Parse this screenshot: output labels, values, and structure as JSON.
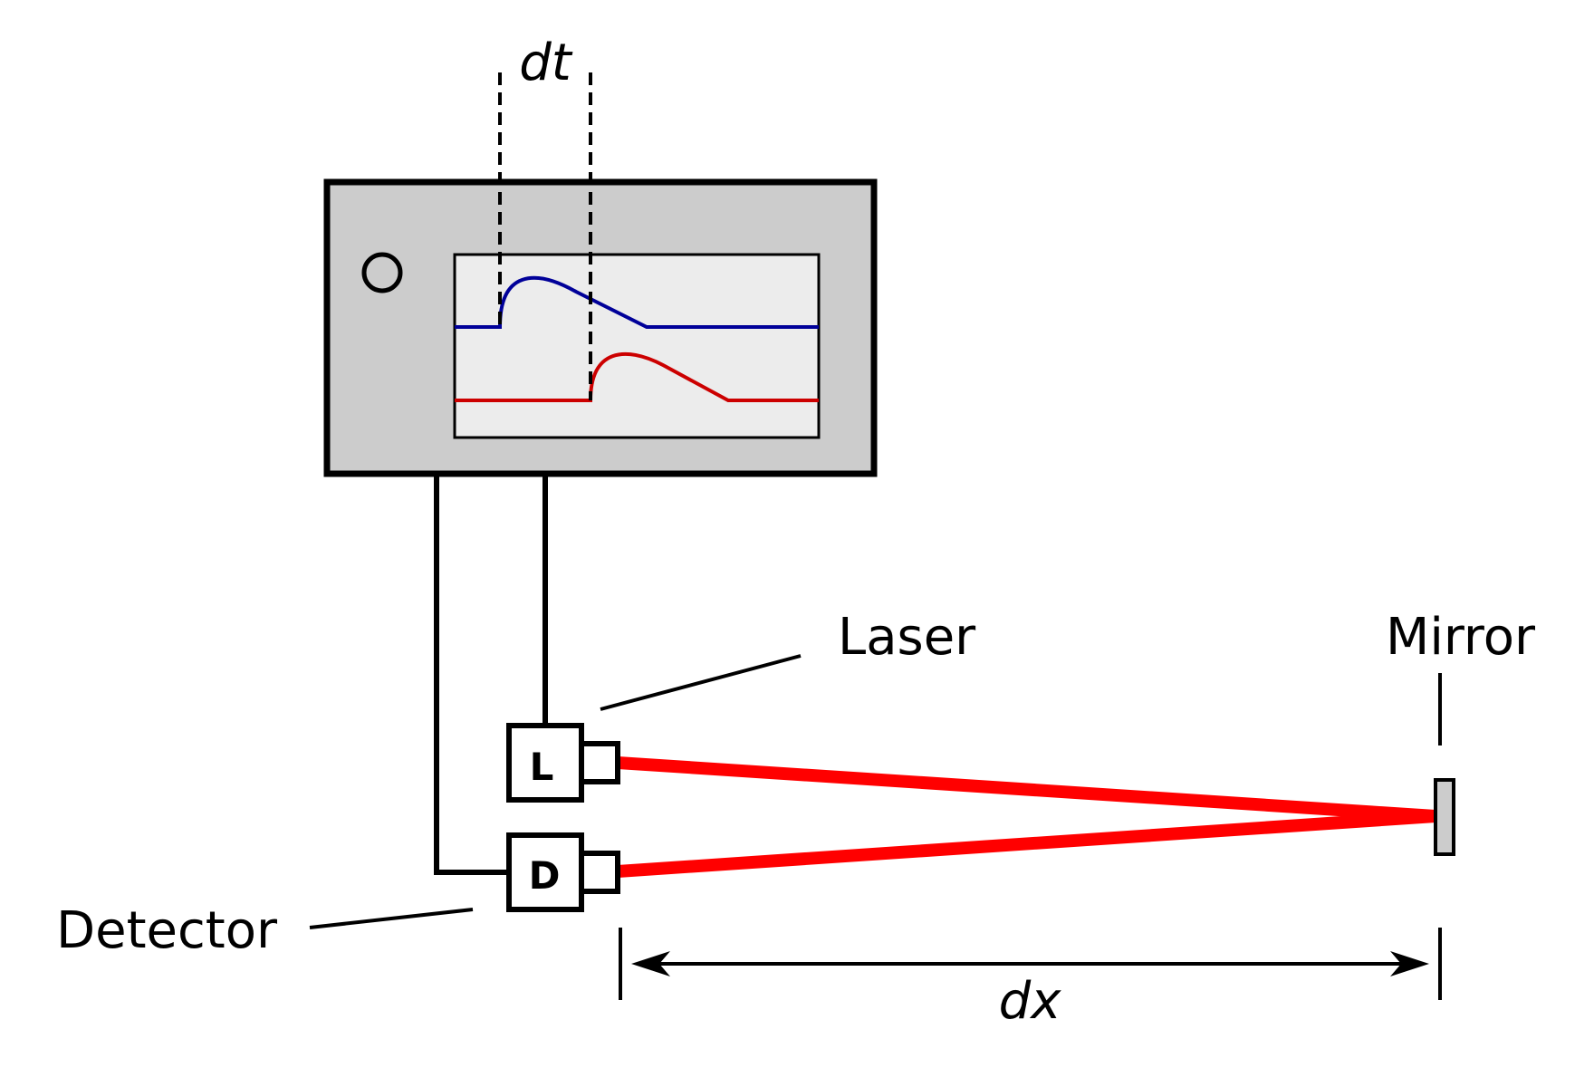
{
  "labels": {
    "dt": "dt",
    "laser": "Laser",
    "mirror": "Mirror",
    "detector": "Detector",
    "dx": "dx",
    "laser_box": "L",
    "detector_box": "D"
  },
  "colors": {
    "oscilloscope_body": "#cccccc",
    "screen": "#ececec",
    "laser_signal": "#000099",
    "detector_signal": "#cc0000",
    "beam": "#ff0000",
    "mirror": "#cccccc",
    "line": "#000000"
  }
}
